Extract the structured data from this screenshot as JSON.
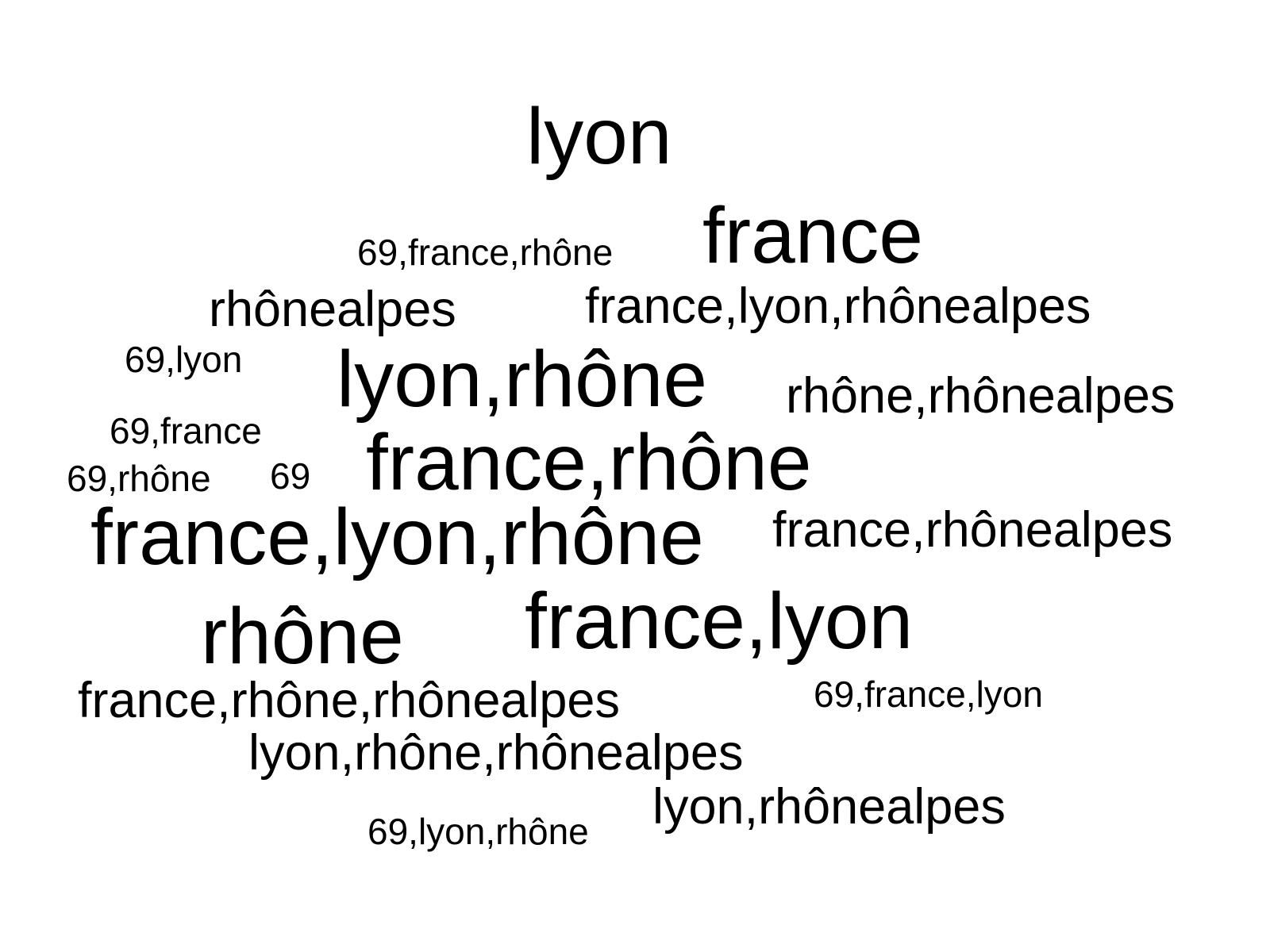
{
  "word_cloud": {
    "words": [
      {
        "text": "lyon"
      },
      {
        "text": "france"
      },
      {
        "text": "69,france,rhône"
      },
      {
        "text": "rhônealpes"
      },
      {
        "text": "france,lyon,rhônealpes"
      },
      {
        "text": "69,lyon"
      },
      {
        "text": "lyon,rhône"
      },
      {
        "text": "rhône,rhônealpes"
      },
      {
        "text": "69,france"
      },
      {
        "text": "france,rhône"
      },
      {
        "text": "69,rhône"
      },
      {
        "text": "69"
      },
      {
        "text": "france,lyon,rhône"
      },
      {
        "text": "france,rhônealpes"
      },
      {
        "text": "rhône"
      },
      {
        "text": "france,lyon"
      },
      {
        "text": "france,rhône,rhônealpes"
      },
      {
        "text": "69,france,lyon"
      },
      {
        "text": "lyon,rhône,rhônealpes"
      },
      {
        "text": "lyon,rhônealpes"
      },
      {
        "text": "69,lyon,rhône"
      }
    ],
    "text_color": "#000000",
    "background_color": "#ffffff"
  }
}
